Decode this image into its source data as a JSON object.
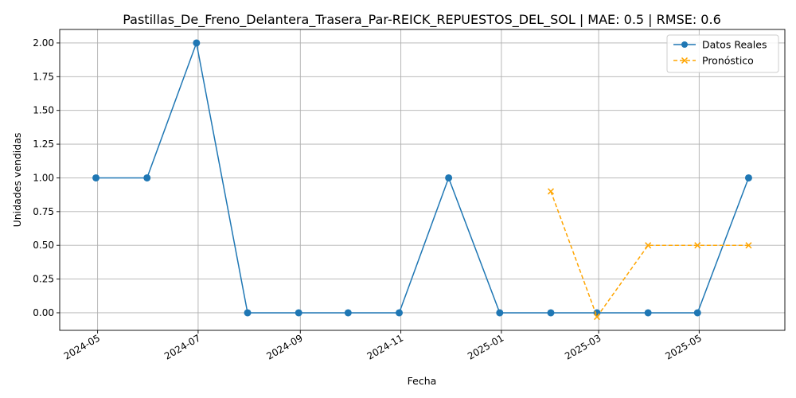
{
  "chart_data": {
    "type": "line",
    "title": "Pastillas_De_Freno_Delantera_Trasera_Par-REICK_REPUESTOS_DEL_SOL | MAE: 0.5 | RMSE: 0.6",
    "xlabel": "Fecha",
    "ylabel": "Unidades vendidas",
    "x_ticks": [
      "2024-05",
      "2024-07",
      "2024-09",
      "2024-11",
      "2025-01",
      "2025-03",
      "2025-05"
    ],
    "y_ticks": [
      "0.00",
      "0.25",
      "0.50",
      "0.75",
      "1.00",
      "1.25",
      "1.50",
      "1.75",
      "2.00"
    ],
    "ylim": [
      -0.13,
      2.1
    ],
    "xlim": [
      "2024-04-08",
      "2025-06-22"
    ],
    "grid": true,
    "legend_position": "top-right",
    "series": [
      {
        "name": "Datos Reales",
        "color": "#1f77b4",
        "style": "solid",
        "marker": "circle",
        "points": [
          {
            "x": "2024-04-30",
            "y": 1
          },
          {
            "x": "2024-05-31",
            "y": 1
          },
          {
            "x": "2024-06-30",
            "y": 2
          },
          {
            "x": "2024-07-31",
            "y": 0
          },
          {
            "x": "2024-08-31",
            "y": 0
          },
          {
            "x": "2024-09-30",
            "y": 0
          },
          {
            "x": "2024-10-31",
            "y": 0
          },
          {
            "x": "2024-11-30",
            "y": 1
          },
          {
            "x": "2024-12-31",
            "y": 0
          },
          {
            "x": "2025-01-31",
            "y": 0
          },
          {
            "x": "2025-02-28",
            "y": 0
          },
          {
            "x": "2025-03-31",
            "y": 0
          },
          {
            "x": "2025-04-30",
            "y": 0
          },
          {
            "x": "2025-05-31",
            "y": 1
          }
        ]
      },
      {
        "name": "Pronóstico",
        "color": "#ffa500",
        "style": "dashed",
        "marker": "x",
        "points": [
          {
            "x": "2025-01-31",
            "y": 0.9
          },
          {
            "x": "2025-02-28",
            "y": -0.03
          },
          {
            "x": "2025-03-31",
            "y": 0.5
          },
          {
            "x": "2025-04-30",
            "y": 0.5
          },
          {
            "x": "2025-05-31",
            "y": 0.5
          }
        ]
      }
    ]
  }
}
